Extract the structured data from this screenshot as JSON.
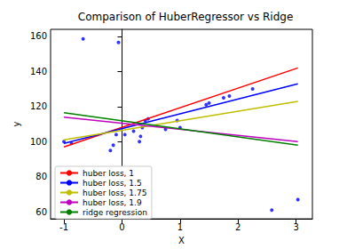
{
  "chart_data": {
    "type": "scatter",
    "title": "Comparison of HuberRegressor vs Ridge",
    "x_label": "X",
    "y_label": "y",
    "xlim": [
      -1.23,
      3.28
    ],
    "xticks": [
      -1,
      0,
      1,
      2,
      3
    ],
    "ylim": [
      56,
      164
    ],
    "yticks": [
      60,
      80,
      100,
      120,
      140,
      160
    ],
    "grid": false,
    "legend": "lower left",
    "series": [
      {
        "type": "scatter",
        "color": "blue",
        "marker": "circle",
        "x": [
          -0.67,
          -0.06,
          -1.0,
          -0.87,
          -0.2,
          -0.15,
          -0.1,
          0.05,
          0.2,
          0.3,
          0.32,
          0.35,
          0.4,
          0.45,
          0.75,
          0.95,
          1.0,
          1.45,
          1.5,
          1.75,
          1.85,
          2.25,
          2.58,
          3.03
        ],
        "values": [
          158.5,
          156.5,
          100,
          99,
          95,
          98,
          104,
          104,
          106,
          100,
          103,
          108,
          112,
          113,
          107,
          112,
          108,
          121,
          122,
          125,
          126,
          130,
          61,
          67
        ]
      },
      {
        "name": "huber loss, 1",
        "type": "line",
        "color": "red",
        "x": [
          -1.0,
          3.03
        ],
        "values": [
          97,
          142
        ]
      },
      {
        "name": "huber loss, 1.5",
        "type": "line",
        "color": "blue",
        "x": [
          -1.0,
          3.03
        ],
        "values": [
          99,
          133
        ]
      },
      {
        "name": "huber loss, 1.75",
        "type": "line",
        "color": "#bfbf00",
        "x": [
          -1.0,
          3.03
        ],
        "values": [
          101,
          123
        ]
      },
      {
        "name": "huber loss, 1.9",
        "type": "line",
        "color": "#bf00bf",
        "x": [
          -1.0,
          3.03
        ],
        "values": [
          114,
          100
        ]
      },
      {
        "name": "ridge regression",
        "type": "line",
        "color": "green",
        "x": [
          -1.0,
          3.03
        ],
        "values": [
          116.5,
          98
        ]
      }
    ]
  }
}
